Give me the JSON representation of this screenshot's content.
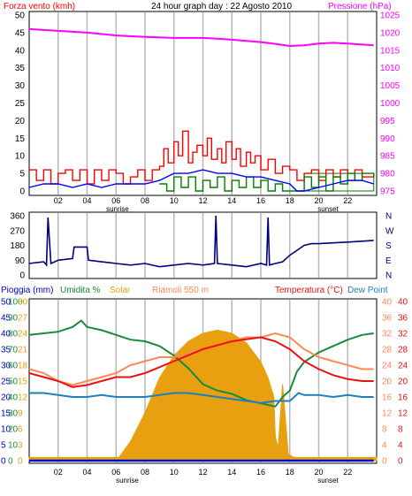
{
  "header": {
    "left_label": "Forza vento (kmh)",
    "center_label": "24 hour graph day : 22 Agosto 2010",
    "right_label": "Pressione (hPa)"
  },
  "x_ticks": [
    "02",
    "04",
    "06",
    "08",
    "10",
    "12",
    "14",
    "16",
    "18",
    "20",
    "22"
  ],
  "sunrise_label": "sunrise",
  "sunset_label": "sunset",
  "legend": {
    "rain": "Pioggia (mm)",
    "humidity": "Umidita %",
    "solar": "Solar",
    "location": "Riamoli 550 m",
    "temperature": "Temperatura (°C)",
    "dewpoint": "Dew Point"
  },
  "colors": {
    "wind_gust": "#ff0000",
    "wind_avg": "#008000",
    "wind_speed": "#0000ff",
    "pressure": "#ff00ff",
    "direction": "#000080",
    "humidity": "#1a8a3a",
    "solar": "#e8a010",
    "temperature": "#ee1111",
    "temperature_max": "#ff8855",
    "dewpoint": "#1f7fbf",
    "rain": "#0000cc",
    "grid_v": "#b8b8b8",
    "panel_bg": "#ffffff"
  },
  "chart_data": [
    {
      "type": "line",
      "panel": "wind-pressure",
      "x_unit": "hour",
      "ylim_left": [
        0,
        50
      ],
      "yticks_left": [
        "0",
        "5",
        "10",
        "15",
        "20",
        "25",
        "30",
        "35",
        "40",
        "45",
        "50"
      ],
      "ylim_right": [
        975,
        1025
      ],
      "yticks_right": [
        "975",
        "980",
        "985",
        "990",
        "995",
        "1000",
        "1005",
        "1010",
        "1015",
        "1020",
        "1025"
      ],
      "series": [
        {
          "key": "pressure",
          "axis": "right",
          "x": [
            0,
            2,
            4,
            6,
            8,
            10,
            12,
            13,
            14,
            16,
            17,
            18,
            19,
            20,
            21,
            22,
            23.8
          ],
          "y": [
            1021,
            1020.5,
            1020,
            1019.2,
            1018.8,
            1018.5,
            1018.5,
            1018.3,
            1018,
            1017.3,
            1016.8,
            1016.2,
            1016.4,
            1016.9,
            1017.1,
            1016.9,
            1016.4
          ]
        },
        {
          "key": "wind_gust",
          "axis": "left",
          "x": [
            0,
            0.5,
            1,
            1.5,
            2,
            2.5,
            3,
            3.5,
            4,
            4.5,
            5,
            5.5,
            6,
            6.5,
            7,
            7.5,
            8,
            8.5,
            9,
            9.3,
            9.6,
            10,
            10.3,
            10.6,
            11,
            11.3,
            11.6,
            12,
            12.3,
            12.6,
            13,
            13.3,
            13.6,
            14,
            14.3,
            14.6,
            15,
            15.3,
            15.6,
            16,
            16.5,
            17,
            17.5,
            18,
            18.5,
            19,
            19.5,
            20,
            20.5,
            21,
            21.5,
            22,
            22.5,
            23,
            23.8
          ],
          "y": [
            6,
            3,
            6,
            2,
            5,
            6,
            3,
            6,
            2,
            6,
            3,
            6,
            5,
            2,
            4,
            6,
            3,
            6,
            7,
            12,
            8,
            14,
            10,
            17,
            8,
            11,
            13,
            10,
            15,
            9,
            12,
            8,
            14,
            9,
            12,
            7,
            11,
            8,
            10,
            6,
            9,
            5,
            7,
            6,
            3,
            5,
            6,
            3,
            6,
            4,
            6,
            3,
            6,
            4,
            5
          ]
        },
        {
          "key": "wind_speed",
          "axis": "left",
          "x": [
            0,
            1,
            2,
            3,
            4,
            5,
            6,
            7,
            8,
            9,
            10,
            11,
            12,
            13,
            14,
            15,
            16,
            17,
            18,
            18.5,
            19,
            20,
            21,
            22,
            23,
            23.8
          ],
          "y": [
            1,
            2,
            2,
            1,
            2,
            1,
            2,
            2,
            2,
            3,
            5,
            5,
            6,
            5,
            5,
            4,
            4,
            3,
            2,
            0,
            0,
            1,
            2,
            3,
            3,
            2
          ]
        },
        {
          "key": "wind_avg",
          "axis": "left",
          "x": [
            9,
            9.5,
            10,
            10.5,
            11,
            11.5,
            12,
            12.5,
            13,
            13.5,
            14,
            14.5,
            15,
            15.5,
            16,
            16.5,
            17,
            17.5,
            18,
            19,
            19.5,
            20,
            20.5,
            21,
            21.5,
            22,
            22.5,
            23,
            23.8
          ],
          "y": [
            2,
            0,
            4,
            1,
            4,
            0,
            3,
            1,
            4,
            0,
            3,
            1,
            4,
            1,
            3,
            0,
            2,
            0,
            0,
            4,
            1,
            4,
            0,
            4,
            2,
            5,
            3,
            5,
            4
          ]
        }
      ]
    },
    {
      "type": "line",
      "panel": "direction",
      "x_unit": "hour",
      "ylim": [
        0,
        360
      ],
      "yticks_left": [
        "0",
        "90",
        "180",
        "270",
        "360"
      ],
      "yticks_right": [
        "N",
        "E",
        "S",
        "W",
        "N"
      ],
      "series": [
        {
          "key": "direction",
          "x": [
            0,
            1,
            1.2,
            1.3,
            1.5,
            2,
            3,
            3.1,
            4,
            4.1,
            5,
            6,
            7,
            8,
            9,
            10,
            11,
            12,
            12.8,
            12.9,
            13,
            14,
            15,
            16,
            16.4,
            16.5,
            16.6,
            17,
            17.5,
            18,
            18.5,
            19,
            19.5,
            20,
            21,
            22,
            23,
            23.8
          ],
          "y": [
            70,
            80,
            60,
            350,
            70,
            90,
            100,
            170,
            170,
            90,
            80,
            70,
            60,
            70,
            50,
            60,
            70,
            60,
            70,
            360,
            70,
            60,
            50,
            70,
            60,
            350,
            60,
            70,
            80,
            120,
            150,
            180,
            190,
            190,
            195,
            200,
            205,
            210
          ]
        }
      ]
    },
    {
      "type": "line",
      "panel": "temperature-humidity-solar",
      "x_unit": "hour",
      "ylim_humidity": [
        0,
        100
      ],
      "yticks_rain": [
        "0",
        "5",
        "10",
        "15",
        "20",
        "25",
        "30",
        "35",
        "40",
        "45",
        "50"
      ],
      "yticks_humidity": [
        "0",
        "10",
        "20",
        "30",
        "40",
        "50",
        "60",
        "70",
        "80",
        "90",
        "100"
      ],
      "yticks_solar": [
        "0",
        "3",
        "6",
        "9",
        "12",
        "15",
        "18",
        "21",
        "24",
        "27",
        "30"
      ],
      "ylim_temperature": [
        0,
        40
      ],
      "yticks_temp_left": [
        "0",
        "4",
        "8",
        "12",
        "16",
        "20",
        "24",
        "28",
        "32",
        "36",
        "40"
      ],
      "yticks_temp_right": [
        "0",
        "4",
        "8",
        "12",
        "16",
        "20",
        "24",
        "28",
        "32",
        "36",
        "40"
      ],
      "series": [
        {
          "key": "solar",
          "axis": "humidity",
          "x": [
            0,
            6.2,
            7,
            8,
            9,
            10,
            11,
            12,
            13,
            14,
            15,
            16,
            16.5,
            16.9,
            17,
            17.2,
            17.5,
            17.9,
            18.3,
            24
          ],
          "y": [
            2,
            2,
            12,
            30,
            52,
            66,
            75,
            80,
            82,
            80,
            74,
            62,
            52,
            40,
            15,
            8,
            48,
            4,
            2,
            2
          ]
        },
        {
          "key": "humidity",
          "axis": "humidity",
          "x": [
            0,
            1,
            2,
            3,
            3.6,
            4,
            5,
            6,
            7,
            8,
            9,
            10,
            11,
            12,
            13,
            14,
            15,
            16,
            17,
            17.5,
            18,
            18.5,
            19,
            20,
            21,
            22,
            23,
            23.8
          ],
          "y": [
            79,
            80,
            81,
            84,
            88,
            84,
            82,
            79,
            76,
            75,
            72,
            66,
            58,
            48,
            44,
            42,
            38,
            36,
            34,
            40,
            44,
            56,
            62,
            68,
            72,
            76,
            79,
            80
          ]
        },
        {
          "key": "temperature_max",
          "axis": "temperature",
          "x": [
            0,
            1,
            2,
            3,
            4,
            5,
            6,
            7,
            8,
            9,
            10,
            11,
            12,
            13,
            14,
            15,
            16,
            17,
            18,
            19,
            20,
            21,
            22,
            23,
            23.8
          ],
          "y": [
            23,
            22,
            20,
            19,
            20,
            21,
            22,
            24,
            25,
            26,
            26,
            27,
            28,
            29,
            30,
            31,
            31,
            32,
            31,
            28,
            26,
            25,
            24,
            23,
            23
          ]
        },
        {
          "key": "temperature",
          "axis": "temperature",
          "x": [
            0,
            1,
            2,
            3,
            4,
            5,
            6,
            7,
            8,
            9,
            10,
            11,
            12,
            13,
            14,
            15,
            16,
            17,
            18,
            19,
            20,
            21,
            22,
            23,
            23.8
          ],
          "y": [
            22,
            21,
            20,
            18.5,
            19,
            20,
            21,
            21,
            22,
            23.5,
            25,
            26.5,
            28,
            29,
            30,
            30.5,
            31,
            30,
            28,
            25,
            23,
            21.5,
            20.5,
            20,
            20
          ]
        },
        {
          "key": "dewpoint",
          "axis": "temperature",
          "x": [
            0,
            1,
            2,
            3,
            4,
            5,
            6,
            7,
            8,
            9,
            10,
            11,
            12,
            13,
            14,
            15,
            16,
            17,
            18,
            18.3,
            18.6,
            19,
            20,
            21,
            22,
            23,
            23.8
          ],
          "y": [
            17,
            17,
            16.5,
            16,
            16,
            16.5,
            16,
            16,
            16,
            16.5,
            17,
            17,
            16.5,
            16,
            15.5,
            15,
            14.5,
            15,
            15,
            16,
            17,
            16.5,
            16.5,
            16,
            16.5,
            16,
            16
          ]
        },
        {
          "key": "rain",
          "axis": "rain",
          "x": [
            0,
            23.8
          ],
          "y": [
            0,
            0
          ]
        }
      ]
    }
  ]
}
